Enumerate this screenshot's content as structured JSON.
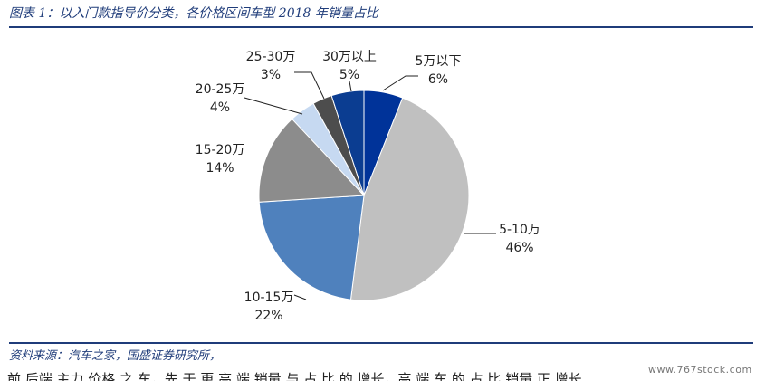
{
  "caption": "图表 1：以入门款指导价分类，各价格区间车型 2018 年销量占比",
  "source": "资料来源：汽车之家，国盛证券研究所，",
  "body_text_partial": "前 后端 主力 价格 之 车，先 于 更 高 端 销量 与 占 比 的 增长，高 端 车 的 占 比 销量 正 增长",
  "watermark": "www.767stock.com",
  "chart_data": {
    "type": "pie",
    "title": "",
    "slices": [
      {
        "label": "5万以下",
        "value": 6,
        "pct_text": "6%",
        "color": "#003399"
      },
      {
        "label": "5-10万",
        "value": 46,
        "pct_text": "46%",
        "color": "#c0c0c0"
      },
      {
        "label": "10-15万",
        "value": 22,
        "pct_text": "22%",
        "color": "#4f81bd"
      },
      {
        "label": "15-20万",
        "value": 14,
        "pct_text": "14%",
        "color": "#8c8c8c"
      },
      {
        "label": "20-25万",
        "value": 4,
        "pct_text": "4%",
        "color": "#c6d9f1"
      },
      {
        "label": "25-30万",
        "value": 3,
        "pct_text": "3%",
        "color": "#4d4d4d"
      },
      {
        "label": "30万以上",
        "value": 5,
        "pct_text": "5%",
        "color": "#0b3d91"
      }
    ],
    "start_angle_deg": 0,
    "direction": "clockwise",
    "legend": "none",
    "labels": "outside with leader lines"
  }
}
